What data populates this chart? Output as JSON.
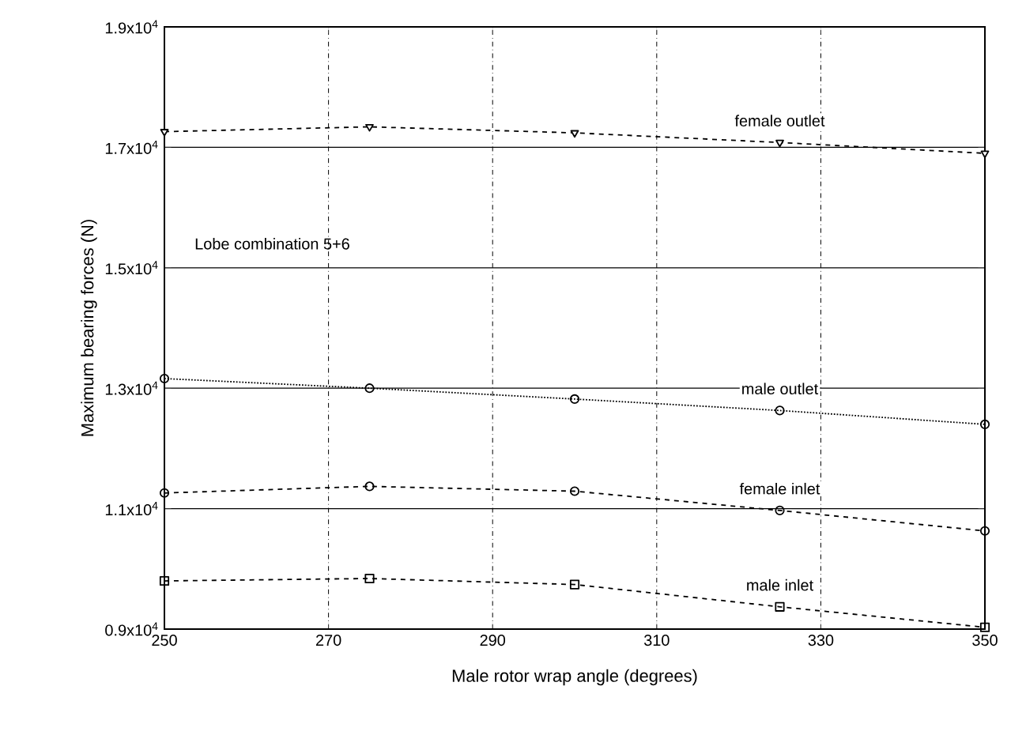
{
  "chart_data": {
    "type": "line",
    "xlabel": "Male rotor wrap angle (degrees)",
    "ylabel": "Maximum bearing forces (N)",
    "x": [
      250,
      275,
      300,
      325,
      350
    ],
    "xlim": [
      250,
      350
    ],
    "xticks": [
      250,
      270,
      290,
      310,
      330,
      350
    ],
    "ylim": [
      9000,
      19000
    ],
    "yticks": [
      {
        "value": 9000,
        "label": "0.9x10$^{4}$"
      },
      {
        "value": 11000,
        "label": "1.1x10$^{4}$"
      },
      {
        "value": 13000,
        "label": "1.3x10$^{4}$"
      },
      {
        "value": 15000,
        "label": "1.5x10$^{4}$"
      },
      {
        "value": 17000,
        "label": "1.7x10$^{4}$"
      },
      {
        "value": 19000,
        "label": "1.9x10$^{4}$"
      }
    ],
    "grid": true,
    "legend": false,
    "series": [
      {
        "name": "female outlet",
        "color": "#000000",
        "marker": "triangle",
        "line_style": "dashed",
        "values": [
          17260,
          17340,
          17240,
          17080,
          16900
        ]
      },
      {
        "name": "male outlet",
        "color": "#000000",
        "marker": "circle",
        "line_style": "dotted",
        "values": [
          13160,
          13000,
          12820,
          12630,
          12400
        ]
      },
      {
        "name": "female inlet",
        "color": "#000000",
        "marker": "circle",
        "line_style": "dashed",
        "values": [
          11260,
          11370,
          11290,
          10970,
          10630
        ]
      },
      {
        "name": "male inlet",
        "color": "#000000",
        "marker": "square",
        "line_style": "dashed",
        "values": [
          9800,
          9840,
          9740,
          9370,
          9030
        ]
      }
    ],
    "annotations": [
      "Lobe combination 5+6"
    ]
  }
}
